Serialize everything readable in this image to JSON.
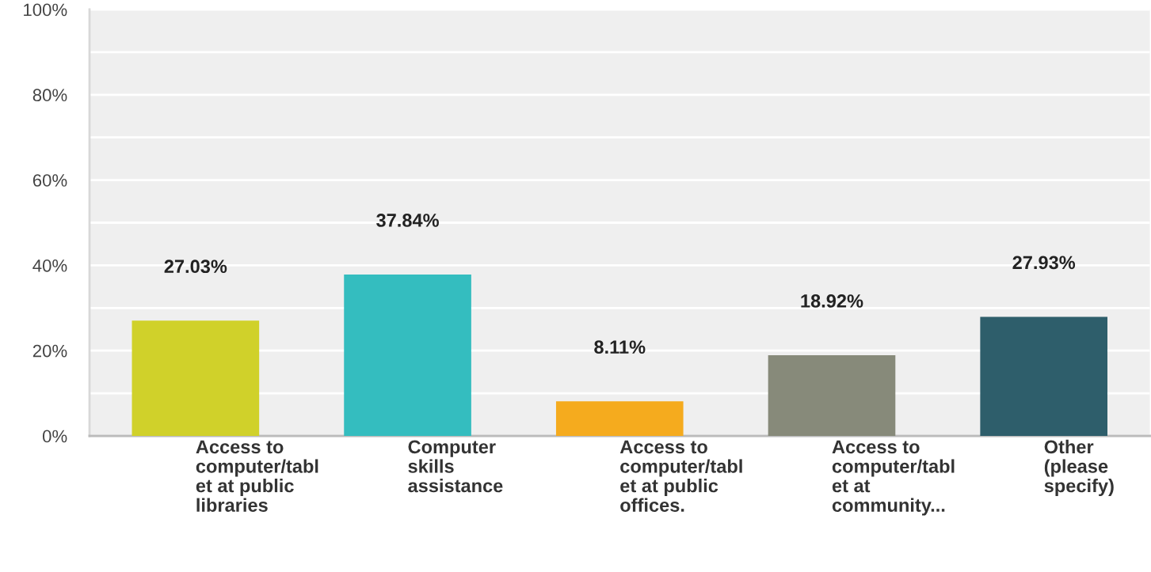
{
  "chart_data": {
    "type": "bar",
    "categories": [
      "Access to\ncomputer/tabl\net at public\nlibraries",
      "Computer\nskills\nassistance",
      "Access to\ncomputer/tabl\net at public\noffices.",
      "Access to\ncomputer/tabl\net at\ncommunity...",
      "Other\n(please\nspecify)"
    ],
    "values": [
      27.03,
      37.84,
      8.11,
      18.92,
      27.93
    ],
    "colors": [
      "#d0d12a",
      "#34bdbf",
      "#f5ab1e",
      "#878a7a",
      "#2e5e6b"
    ],
    "value_labels": [
      "27.03%",
      "37.84%",
      "8.11%",
      "18.92%",
      "27.93%"
    ],
    "ylim": [
      0,
      100
    ],
    "yticks": [
      {
        "value": 0,
        "label": "0%"
      },
      {
        "value": 10,
        "label": null
      },
      {
        "value": 20,
        "label": "20%"
      },
      {
        "value": 30,
        "label": null
      },
      {
        "value": 40,
        "label": "40%"
      },
      {
        "value": 50,
        "label": null
      },
      {
        "value": 60,
        "label": "60%"
      },
      {
        "value": 70,
        "label": null
      },
      {
        "value": 80,
        "label": "80%"
      },
      {
        "value": 90,
        "label": null
      },
      {
        "value": 100,
        "label": "100%"
      }
    ],
    "grid": "y"
  }
}
